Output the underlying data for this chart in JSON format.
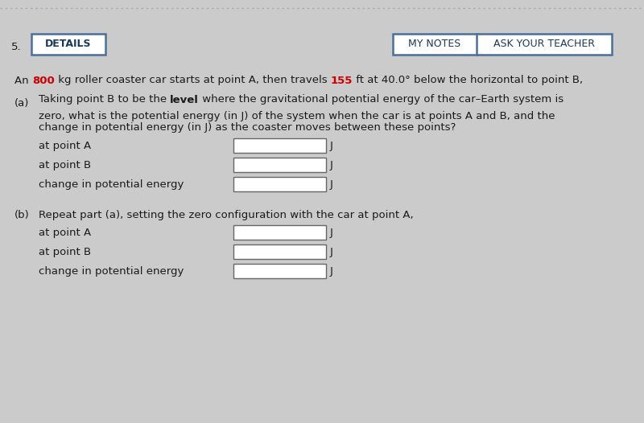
{
  "background_color": "#cbcbcb",
  "btn_border_color": "#4a6f9a",
  "btn_text_color": "#1a3a5c",
  "highlight_color": "#cc0000",
  "text_color": "#1a1a1a",
  "input_border_color": "#666666",
  "number": "5.",
  "btn_details": "DETAILS",
  "btn_my_notes": "MY NOTES",
  "btn_ask_teacher": "ASK YOUR TEACHER",
  "unit_label": "J",
  "row_labels": [
    "at point A",
    "at point B",
    "change in potential energy"
  ],
  "part_b_text": "Repeat part (a), setting the zero configuration with the car at point A,",
  "dotted_line_color": "#aaaaaa",
  "fig_width": 8.0,
  "fig_height": 5.26,
  "dpi": 100
}
